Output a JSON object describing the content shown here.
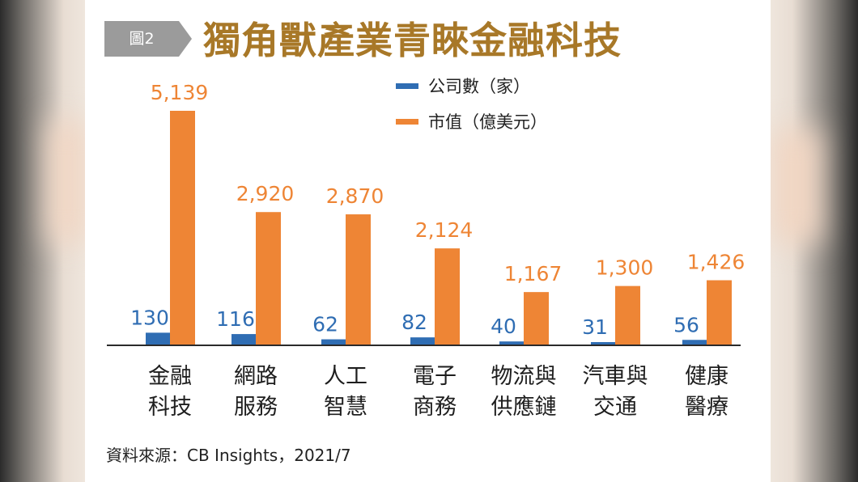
{
  "figure_tag": "圖2",
  "title": "獨角獸產業青睞金融科技",
  "source": "資料來源：CB Insights，2021/7",
  "colors": {
    "companies": "#2f6db3",
    "market_value": "#ee8535",
    "title": "#a87828",
    "tag": "#9b9b9b"
  },
  "chart_data": {
    "type": "bar",
    "title": "獨角獸產業青睞金融科技",
    "categories": [
      [
        "金融",
        "科技"
      ],
      [
        "網路",
        "服務"
      ],
      [
        "人工",
        "智慧"
      ],
      [
        "電子",
        "商務"
      ],
      [
        "物流與",
        "供應鏈"
      ],
      [
        "汽車與",
        "交通"
      ],
      [
        "健康",
        "醫療"
      ]
    ],
    "series": [
      {
        "name": "公司數（家）",
        "values": [
          130,
          116,
          62,
          82,
          40,
          31,
          56
        ],
        "labels": [
          "130",
          "116",
          "62",
          "82",
          "40",
          "31",
          "56"
        ]
      },
      {
        "name": "市值（億美元）",
        "values": [
          5139,
          2920,
          2870,
          2124,
          1167,
          1300,
          1426
        ],
        "labels": [
          "5,139",
          "2,920",
          "2,870",
          "2,124",
          "1,167",
          "1,300",
          "1,426"
        ]
      }
    ],
    "legend_position": "top-center",
    "grid": false,
    "xlabel": "",
    "ylabel": "",
    "ylim": [
      0,
      5500
    ]
  }
}
